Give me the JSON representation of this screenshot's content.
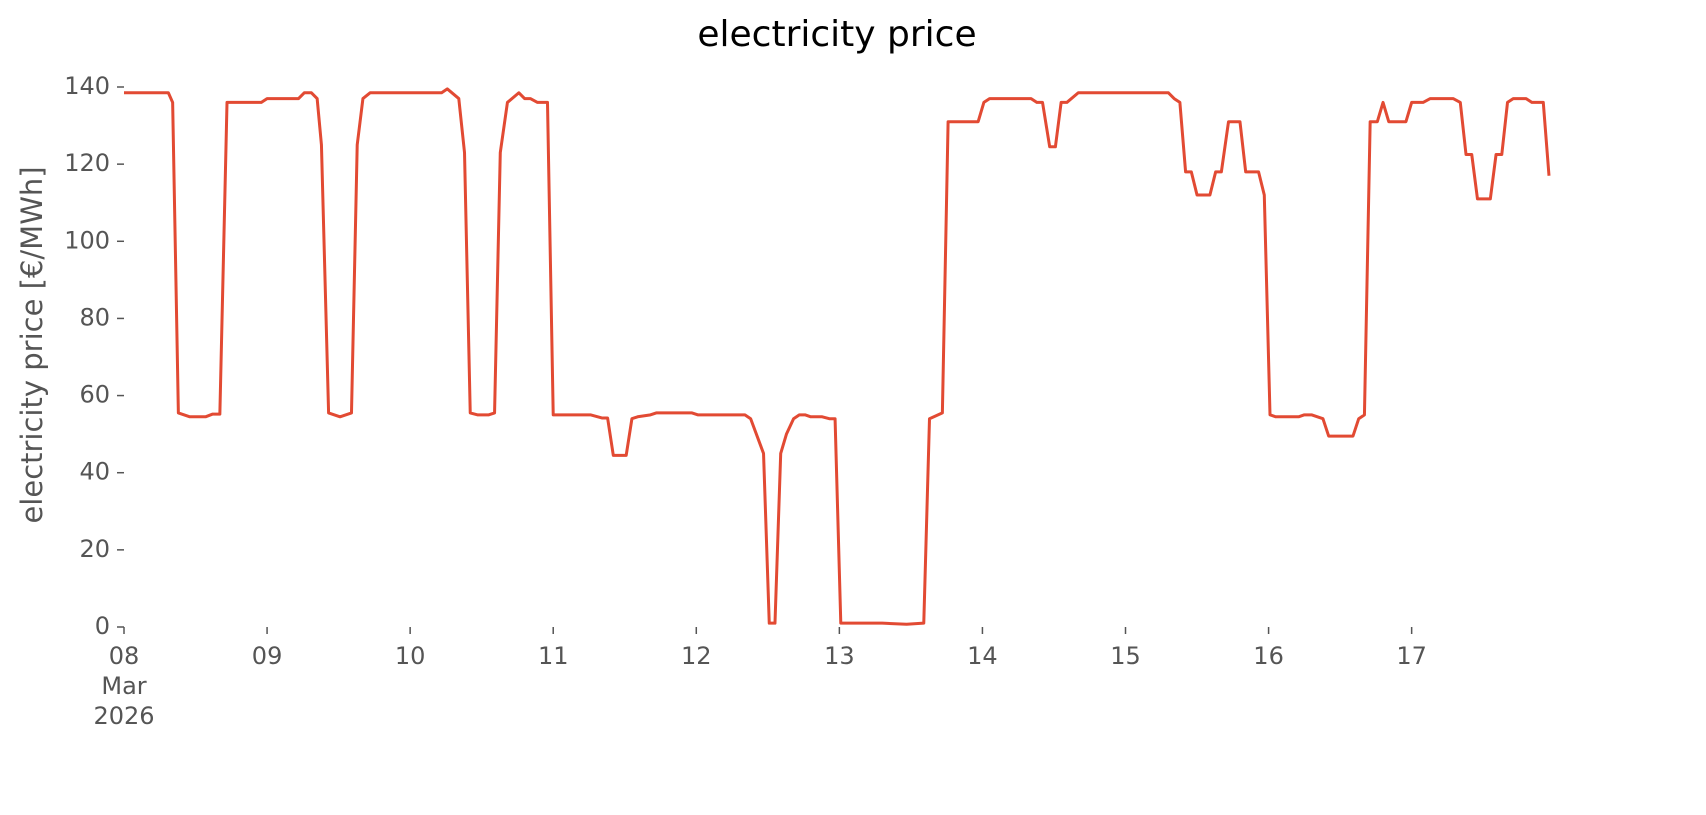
{
  "chart_data": {
    "type": "line",
    "title": "electricity price",
    "y_label": "electricity price [€/MWh]",
    "series": [
      {
        "name": "electricity price",
        "color": "#e24a33",
        "x": [
          0,
          0.31,
          0.34,
          0.38,
          0.46,
          0.57,
          0.62,
          0.67,
          0.72,
          0.96,
          1.0,
          1.22,
          1.26,
          1.31,
          1.35,
          1.38,
          1.43,
          1.51,
          1.59,
          1.63,
          1.67,
          1.72,
          2.22,
          2.26,
          2.34,
          2.38,
          2.42,
          2.47,
          2.55,
          2.59,
          2.63,
          2.68,
          2.76,
          2.8,
          2.84,
          2.89,
          2.96,
          3.0,
          3.26,
          3.34,
          3.38,
          3.42,
          3.51,
          3.55,
          3.59,
          3.68,
          3.72,
          3.97,
          4.01,
          4.34,
          4.38,
          4.47,
          4.51,
          4.55,
          4.59,
          4.63,
          4.68,
          4.72,
          4.76,
          4.8,
          4.88,
          4.93,
          4.97,
          5.01,
          5.3,
          5.47,
          5.59,
          5.63,
          5.72,
          5.76,
          5.97,
          6.01,
          6.05,
          6.34,
          6.38,
          6.42,
          6.47,
          6.51,
          6.55,
          6.59,
          6.67,
          7.3,
          7.34,
          7.38,
          7.42,
          7.46,
          7.5,
          7.59,
          7.63,
          7.67,
          7.72,
          7.8,
          7.84,
          7.93,
          7.97,
          8.01,
          8.05,
          8.21,
          8.25,
          8.3,
          8.38,
          8.42,
          8.59,
          8.63,
          8.67,
          8.71,
          8.76,
          8.8,
          8.84,
          8.96,
          9.0,
          9.08,
          9.13,
          9.29,
          9.34,
          9.38,
          9.42,
          9.46,
          9.55,
          9.59,
          9.63,
          9.67,
          9.71,
          9.8,
          9.84,
          9.92,
          9.96
        ],
        "values": [
          138.5,
          138.5,
          136,
          55.5,
          54.5,
          54.5,
          55.2,
          55.2,
          136,
          136,
          137,
          137,
          138.5,
          138.5,
          137,
          125,
          55.5,
          54.5,
          55.5,
          125,
          137,
          138.5,
          138.5,
          139.5,
          137,
          123,
          55.5,
          55,
          55,
          55.5,
          123,
          136,
          138.5,
          137,
          137,
          136,
          136,
          55,
          55,
          54.2,
          54.2,
          44.5,
          44.5,
          54,
          54.5,
          55,
          55.5,
          55.5,
          55,
          55,
          54,
          45,
          1,
          1,
          45,
          50,
          54,
          55,
          55,
          54.5,
          54.5,
          54,
          54,
          1,
          1,
          0.7,
          1,
          54,
          55.5,
          131,
          131,
          136,
          137,
          137,
          136,
          136,
          124.5,
          124.5,
          136,
          136,
          138.5,
          138.5,
          137,
          136,
          118,
          118,
          112,
          112,
          118,
          118,
          131,
          131,
          118,
          118,
          112,
          55,
          54.5,
          54.5,
          55,
          55,
          54,
          49.5,
          49.5,
          54,
          55,
          131,
          131,
          136,
          131,
          131,
          136,
          136,
          137,
          137,
          136,
          122.5,
          122.5,
          111,
          111,
          122.5,
          122.5,
          136,
          137,
          137,
          136,
          136,
          117
        ]
      }
    ],
    "xlim": [
      0,
      9.96
    ],
    "xticks": [
      {
        "value": 0,
        "label": "08\nMar\n2026"
      },
      {
        "value": 1,
        "label": "09"
      },
      {
        "value": 2,
        "label": "10"
      },
      {
        "value": 3,
        "label": "11"
      },
      {
        "value": 4,
        "label": "12"
      },
      {
        "value": 5,
        "label": "13"
      },
      {
        "value": 6,
        "label": "14"
      },
      {
        "value": 7,
        "label": "15"
      },
      {
        "value": 8,
        "label": "16"
      },
      {
        "value": 9,
        "label": "17"
      }
    ],
    "ylim": [
      0,
      140
    ],
    "yticks": [
      0,
      20,
      40,
      60,
      80,
      100,
      120,
      140
    ],
    "grid": false
  }
}
